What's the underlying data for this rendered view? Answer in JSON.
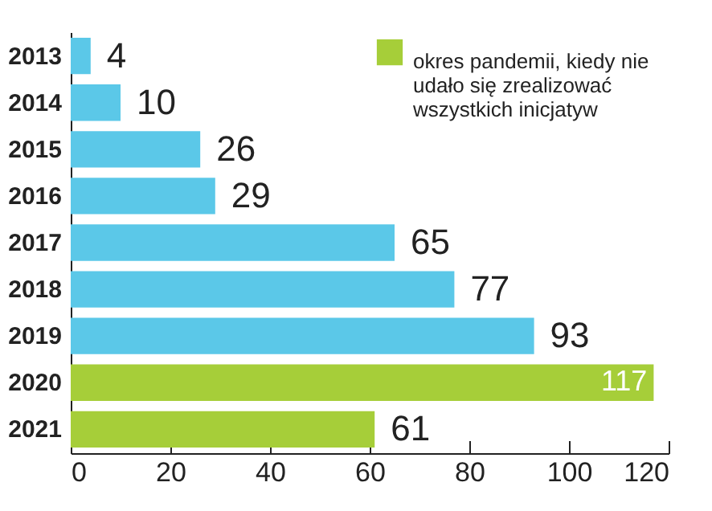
{
  "chart_data": {
    "type": "bar",
    "orientation": "horizontal",
    "categories": [
      "2013",
      "2014",
      "2015",
      "2016",
      "2017",
      "2018",
      "2019",
      "2020",
      "2021"
    ],
    "series": [
      {
        "color": "#5bc8e8",
        "values": [
          4,
          10,
          26,
          29,
          65,
          77,
          93,
          null,
          null
        ]
      },
      {
        "name": "okres pandemii, kiedy nie udało się zrealizować wszystkich inicjatyw",
        "color": "#a6ce39",
        "values": [
          null,
          null,
          null,
          null,
          null,
          null,
          null,
          117,
          61
        ]
      }
    ],
    "xlim": [
      0,
      120
    ],
    "xticks": [
      0,
      20,
      40,
      60,
      80,
      100,
      120
    ],
    "data_labels": true,
    "grid": false,
    "legend": "top right"
  }
}
